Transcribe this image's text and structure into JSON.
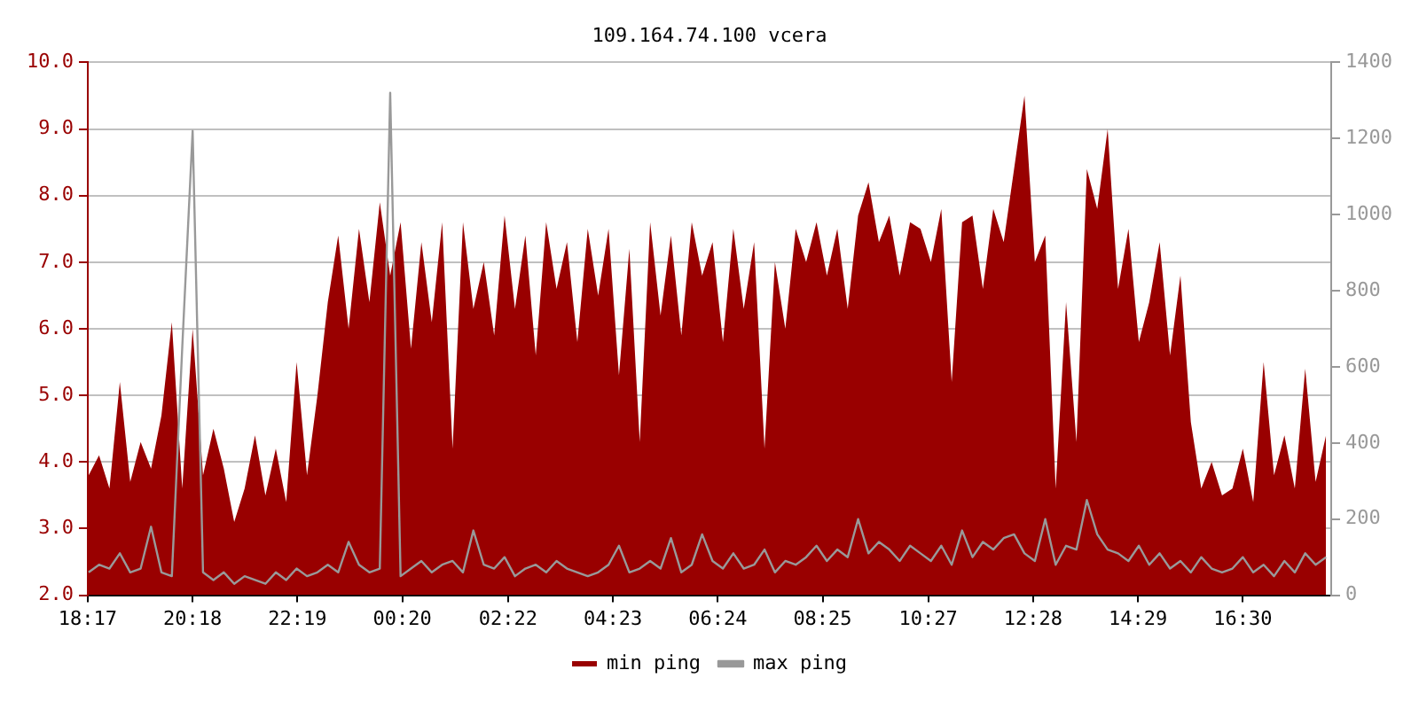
{
  "chart_data": {
    "type": "area",
    "title": "109.164.74.100 vcera",
    "x": [
      "--01-01T18:18",
      "--01-01T18:30",
      "--01-01T18:42",
      "--01-01T18:54",
      "--01-01T19:06",
      "--01-01T19:18",
      "--01-01T19:30",
      "--01-01T19:42",
      "--01-01T19:54",
      "--01-01T20:06",
      "--01-01T20:18",
      "--01-01T20:30",
      "--01-01T20:42",
      "--01-01T20:54",
      "--01-01T21:06",
      "--01-01T21:18",
      "--01-01T21:30",
      "--01-01T21:42",
      "--01-01T21:54",
      "--01-01T22:06",
      "--01-01T22:18",
      "--01-01T22:30",
      "--01-01T22:42",
      "--01-01T22:54",
      "--01-01T23:06",
      "--01-01T23:18",
      "--01-01T23:30",
      "--01-01T23:42",
      "--01-01T23:54",
      "--01-02T00:06",
      "--01-02T00:18",
      "--01-02T00:30",
      "--01-02T00:42",
      "--01-02T00:54",
      "--01-02T01:06",
      "--01-02T01:18",
      "--01-02T01:30",
      "--01-02T01:42",
      "--01-02T01:54",
      "--01-02T02:06",
      "--01-02T02:18",
      "--01-02T02:30",
      "--01-02T02:42",
      "--01-02T02:54",
      "--01-02T03:06",
      "--01-02T03:18",
      "--01-02T03:30",
      "--01-02T03:42",
      "--01-02T03:54",
      "--01-02T04:06",
      "--01-02T04:18",
      "--01-02T04:30",
      "--01-02T04:42",
      "--01-02T04:54",
      "--01-02T05:06",
      "--01-02T05:18",
      "--01-02T05:30",
      "--01-02T05:42",
      "--01-02T05:54",
      "--01-02T06:06",
      "--01-02T06:18",
      "--01-02T06:30",
      "--01-02T06:42",
      "--01-02T06:54",
      "--01-02T07:06",
      "--01-02T07:18",
      "--01-02T07:30",
      "--01-02T07:42",
      "--01-02T07:54",
      "--01-02T08:06",
      "--01-02T08:18",
      "--01-02T08:30",
      "--01-02T08:42",
      "--01-02T08:54",
      "--01-02T09:06",
      "--01-02T09:18",
      "--01-02T09:30",
      "--01-02T09:42",
      "--01-02T09:54",
      "--01-02T10:06",
      "--01-02T10:18",
      "--01-02T10:30",
      "--01-02T10:42",
      "--01-02T10:54",
      "--01-02T11:06",
      "--01-02T11:18",
      "--01-02T11:30",
      "--01-02T11:42",
      "--01-02T11:54",
      "--01-02T12:06",
      "--01-02T12:18",
      "--01-02T12:30",
      "--01-02T12:42",
      "--01-02T12:54",
      "--01-02T13:06",
      "--01-02T13:18",
      "--01-02T13:30",
      "--01-02T13:42",
      "--01-02T13:54",
      "--01-02T14:06",
      "--01-02T14:18",
      "--01-02T14:30",
      "--01-02T14:42",
      "--01-02T14:54",
      "--01-02T15:06",
      "--01-02T15:18",
      "--01-02T15:30",
      "--01-02T15:42",
      "--01-02T15:54",
      "--01-02T16:06",
      "--01-02T16:18",
      "--01-02T16:30",
      "--01-02T16:42",
      "--01-02T16:54",
      "--01-02T17:06",
      "--01-02T17:18",
      "--01-02T17:30",
      "--01-02T17:42",
      "--01-02T17:54",
      "--01-02T18:06"
    ],
    "series": [
      {
        "name": "min ping",
        "type": "area",
        "color": "#990000",
        "values": [
          3.8,
          4.1,
          3.6,
          5.2,
          3.7,
          4.3,
          3.9,
          4.7,
          6.1,
          3.6,
          6.0,
          3.8,
          4.5,
          3.9,
          3.1,
          3.6,
          4.4,
          3.5,
          4.2,
          3.4,
          5.5,
          3.8,
          5.0,
          6.4,
          7.4,
          6.0,
          7.5,
          6.4,
          7.9,
          6.8,
          7.6,
          5.7,
          7.3,
          6.1,
          7.6,
          4.2,
          7.6,
          6.3,
          7.0,
          5.9,
          7.7,
          6.3,
          7.4,
          5.6,
          7.6,
          6.6,
          7.3,
          5.8,
          7.5,
          6.5,
          7.5,
          5.3,
          7.2,
          4.3,
          7.6,
          6.2,
          7.4,
          5.9,
          7.6,
          6.8,
          7.3,
          5.8,
          7.5,
          6.3,
          7.3,
          4.2,
          7.0,
          6.0,
          7.5,
          7.0,
          7.6,
          6.8,
          7.5,
          6.3,
          7.7,
          8.2,
          7.3,
          7.7,
          6.8,
          7.6,
          7.5,
          7.0,
          7.8,
          5.2,
          7.6,
          7.7,
          6.6,
          7.8,
          7.3,
          8.4,
          9.5,
          7.0,
          7.4,
          3.6,
          6.4,
          4.3,
          8.4,
          7.8,
          9.0,
          6.6,
          7.5,
          5.8,
          6.4,
          7.3,
          5.6,
          6.8,
          4.6,
          3.6,
          4.0,
          3.5,
          3.6,
          4.2,
          3.4,
          5.5,
          3.8,
          4.4,
          3.6,
          5.4,
          3.7,
          4.4
        ]
      },
      {
        "name": "max ping",
        "type": "line",
        "axis": "y2",
        "color": "#999999",
        "values": [
          60,
          80,
          70,
          110,
          60,
          70,
          180,
          60,
          50,
          650,
          1220,
          60,
          40,
          60,
          30,
          50,
          40,
          30,
          60,
          40,
          70,
          50,
          60,
          80,
          60,
          140,
          80,
          60,
          70,
          1320,
          50,
          70,
          90,
          60,
          80,
          90,
          60,
          170,
          80,
          70,
          100,
          50,
          70,
          80,
          60,
          90,
          70,
          60,
          50,
          60,
          80,
          130,
          60,
          70,
          90,
          70,
          150,
          60,
          80,
          160,
          90,
          70,
          110,
          70,
          80,
          120,
          60,
          90,
          80,
          100,
          130,
          90,
          120,
          100,
          200,
          110,
          140,
          120,
          90,
          130,
          110,
          90,
          130,
          80,
          170,
          100,
          140,
          120,
          150,
          160,
          110,
          90,
          200,
          80,
          130,
          120,
          250,
          160,
          120,
          110,
          90,
          130,
          80,
          110,
          70,
          90,
          60,
          100,
          70,
          60,
          70,
          100,
          60,
          80,
          50,
          90,
          60,
          110,
          80,
          100
        ]
      }
    ],
    "xlim": [
      "--01-01T18:17",
      "--01-02T18:12"
    ],
    "xticks": [
      {
        "value": "--01-01T18:17",
        "label": "18:17"
      },
      {
        "value": "--01-01T20:18",
        "label": "20:18"
      },
      {
        "value": "--01-01T22:19",
        "label": "22:19"
      },
      {
        "value": "--01-02T00:20",
        "label": "00:20"
      },
      {
        "value": "--01-02T02:22",
        "label": "02:22"
      },
      {
        "value": "--01-02T04:23",
        "label": "04:23"
      },
      {
        "value": "--01-02T06:24",
        "label": "06:24"
      },
      {
        "value": "--01-02T08:25",
        "label": "08:25"
      },
      {
        "value": "--01-02T10:27",
        "label": "10:27"
      },
      {
        "value": "--01-02T12:28",
        "label": "12:28"
      },
      {
        "value": "--01-02T14:29",
        "label": "14:29"
      },
      {
        "value": "--01-02T16:30",
        "label": "16:30"
      }
    ],
    "ylim": [
      2,
      10
    ],
    "yticks": [
      {
        "value": 2,
        "label": "2.0"
      },
      {
        "value": 3,
        "label": "3.0"
      },
      {
        "value": 4,
        "label": "4.0"
      },
      {
        "value": 5,
        "label": "5.0"
      },
      {
        "value": 6,
        "label": "6.0"
      },
      {
        "value": 7,
        "label": "7.0"
      },
      {
        "value": 8,
        "label": "8.0"
      },
      {
        "value": 9,
        "label": "9.0"
      },
      {
        "value": 10,
        "label": "10.0"
      }
    ],
    "y2lim": [
      0,
      1400
    ],
    "y2ticks": [
      0,
      200,
      400,
      600,
      800,
      1000,
      1200,
      1400
    ],
    "grid": "y",
    "legend": "bottom",
    "marker": "none",
    "line_style": "solid"
  }
}
